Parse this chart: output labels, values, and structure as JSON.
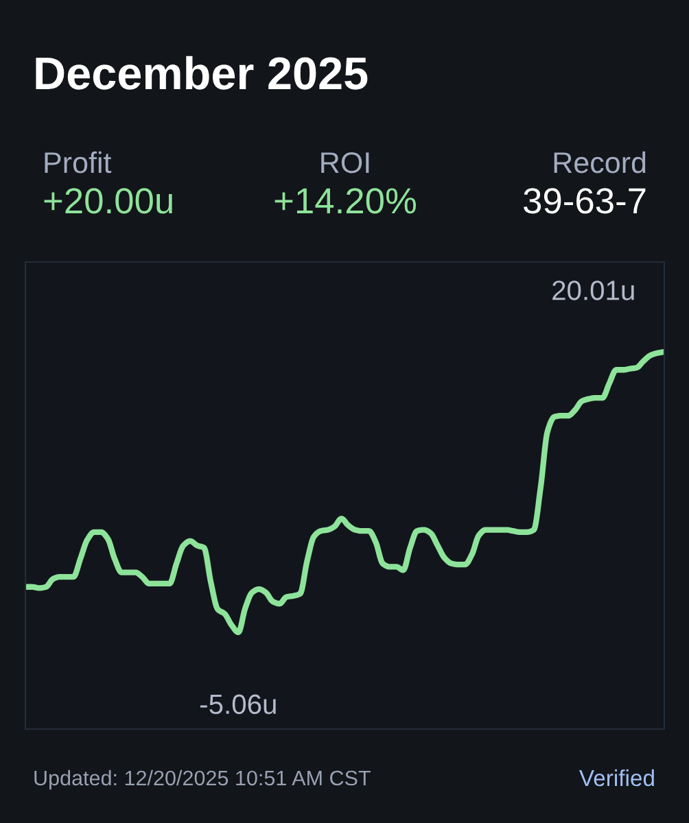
{
  "chart_data": {
    "type": "line",
    "title": "December 2025",
    "annotations": [
      "Profit",
      "+20.00u",
      "ROI",
      "+14.20%",
      "Record",
      "39-63-7",
      "Updated: 12/20/2025 10:51 AM CST",
      "Verified"
    ],
    "categories": [
      null,
      null,
      null,
      null,
      null,
      null,
      null,
      null,
      null,
      null,
      null,
      null,
      null,
      null,
      null,
      null,
      null,
      null,
      null,
      null,
      null,
      null,
      null,
      null,
      null,
      null,
      null,
      null,
      null,
      null,
      null,
      null,
      null,
      null,
      null,
      null,
      null,
      null,
      null,
      null,
      null,
      null,
      null,
      null,
      null,
      null,
      null,
      null,
      null,
      null,
      null,
      null,
      null,
      null,
      null,
      null,
      null,
      null,
      null,
      null,
      null,
      null,
      null,
      null,
      null,
      null,
      null,
      null,
      null,
      null,
      null,
      null,
      null,
      null,
      null,
      null,
      null,
      null,
      null,
      null,
      null,
      null,
      null,
      null,
      null,
      null,
      null,
      null,
      null,
      null,
      null,
      null,
      null,
      null
    ],
    "series": [
      {
        "color": "#8ee39a",
        "values": [
          -1.0,
          -1.0,
          -1.1,
          -1.0,
          -0.3,
          -0.1,
          -0.1,
          -0.1,
          1.5,
          3.2,
          3.9,
          3.9,
          3.3,
          1.5,
          0.3,
          0.3,
          0.3,
          -0.1,
          -0.7,
          -0.7,
          -0.7,
          -0.7,
          1.1,
          2.7,
          3.1,
          2.7,
          2.5,
          -0.6,
          -3.0,
          -3.4,
          -4.4,
          -5.06,
          -2.9,
          -1.5,
          -1.2,
          -1.5,
          -2.3,
          -2.5,
          -1.9,
          -1.8,
          -1.6,
          1.3,
          3.5,
          4.0,
          4.1,
          4.4,
          5.1,
          4.5,
          4.1,
          4.0,
          4.0,
          3.0,
          1.1,
          0.8,
          0.8,
          0.5,
          2.5,
          4.0,
          4.1,
          3.8,
          2.7,
          1.6,
          1.1,
          1.0,
          1.0,
          1.9,
          3.6,
          4.1,
          4.1,
          4.1,
          4.1,
          4.0,
          3.9,
          3.9,
          4.1,
          7.9,
          12.9,
          14.2,
          14.3,
          14.3,
          14.8,
          15.6,
          15.8,
          15.9,
          15.9,
          17.2,
          18.4,
          18.4,
          18.5,
          18.6,
          19.2,
          19.7,
          19.9,
          20.01
        ],
        "value_labels": [
          null,
          null,
          null,
          null,
          null,
          null,
          null,
          null,
          null,
          null,
          null,
          null,
          null,
          null,
          null,
          null,
          null,
          null,
          null,
          null,
          null,
          null,
          null,
          null,
          null,
          null,
          null,
          null,
          null,
          null,
          null,
          "-5.06u",
          null,
          null,
          null,
          null,
          null,
          null,
          null,
          null,
          null,
          null,
          null,
          null,
          null,
          null,
          null,
          null,
          null,
          null,
          null,
          null,
          null,
          null,
          null,
          null,
          null,
          null,
          null,
          null,
          null,
          null,
          null,
          null,
          null,
          null,
          null,
          null,
          null,
          null,
          null,
          null,
          null,
          null,
          null,
          null,
          null,
          null,
          null,
          null,
          null,
          null,
          null,
          null,
          null,
          null,
          null,
          null,
          null,
          null,
          null,
          null,
          null,
          "20.01u"
        ]
      }
    ],
    "line_style": "solid",
    "tick_labels": false
  }
}
